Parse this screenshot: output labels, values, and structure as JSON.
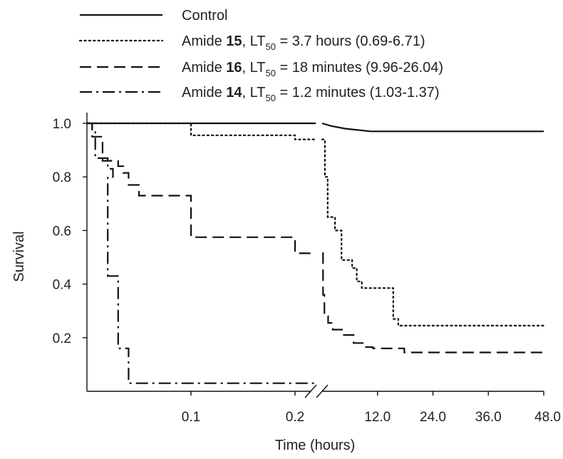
{
  "chart_data": {
    "type": "line",
    "xlabel": "Time (hours)",
    "ylabel": "Survival",
    "ylim": [
      0,
      1.0
    ],
    "yticks": [
      "1.0",
      "0.8",
      "0.6",
      "0.4",
      "0.2"
    ],
    "yticks_values": [
      1.0,
      0.8,
      0.6,
      0.4,
      0.2
    ],
    "xticks_left": [
      "0.1",
      "0.2"
    ],
    "xticks_left_values": [
      0.1,
      0.2
    ],
    "xticks_right": [
      "12.0",
      "24.0",
      "36.0",
      "48.0"
    ],
    "xticks_right_values": [
      12,
      24,
      36,
      48
    ],
    "x_axis_break": {
      "left_segment_range_hours": [
        0,
        0.22
      ],
      "right_segment_range_hours": [
        0,
        48
      ]
    },
    "grid": false,
    "legend_position": "top",
    "series": [
      {
        "key": "control",
        "name": "Control",
        "legend_parts": [
          "Control",
          "",
          "",
          "",
          ""
        ],
        "dash": "solid",
        "left_steps": [
          [
            0,
            1.0
          ],
          [
            0.22,
            1.0
          ]
        ],
        "right_steps": [
          [
            0,
            1.0
          ],
          [
            2,
            0.99
          ],
          [
            5,
            0.98
          ],
          [
            10.5,
            0.97
          ],
          [
            48,
            0.97
          ]
        ]
      },
      {
        "key": "amide15",
        "name": "Amide 15, LT50 = 3.7 hours (0.69-6.71)",
        "legend_parts": [
          "Amide ",
          "15",
          ", LT",
          "50",
          " = 3.7 hours (0.69-6.71)"
        ],
        "dash": "dotted",
        "left_steps": [
          [
            0,
            1.0
          ],
          [
            0.1,
            1.0
          ],
          [
            0.1,
            0.955
          ],
          [
            0.2,
            0.955
          ],
          [
            0.2,
            0.94
          ],
          [
            0.22,
            0.94
          ]
        ],
        "right_steps": [
          [
            0,
            0.94
          ],
          [
            0.6,
            0.94
          ],
          [
            0.6,
            0.8
          ],
          [
            1.2,
            0.8
          ],
          [
            1.2,
            0.65
          ],
          [
            2.8,
            0.65
          ],
          [
            2.8,
            0.6
          ],
          [
            4.2,
            0.6
          ],
          [
            4.2,
            0.49
          ],
          [
            6.5,
            0.49
          ],
          [
            6.5,
            0.46
          ],
          [
            7.5,
            0.46
          ],
          [
            7.5,
            0.41
          ],
          [
            8.6,
            0.41
          ],
          [
            8.6,
            0.385
          ],
          [
            15.4,
            0.385
          ],
          [
            15.4,
            0.27
          ],
          [
            16.5,
            0.27
          ],
          [
            16.5,
            0.245
          ],
          [
            48,
            0.245
          ]
        ]
      },
      {
        "key": "amide16",
        "name": "Amide 16, LT50 = 18 minutes (9.96-26.04)",
        "legend_parts": [
          "Amide ",
          "16",
          ", LT",
          "50",
          " = 18 minutes (9.96-26.04)"
        ],
        "dash": "dashed",
        "left_steps": [
          [
            0,
            1.0
          ],
          [
            0.005,
            1.0
          ],
          [
            0.005,
            0.95
          ],
          [
            0.015,
            0.95
          ],
          [
            0.015,
            0.86
          ],
          [
            0.03,
            0.86
          ],
          [
            0.03,
            0.84
          ],
          [
            0.035,
            0.84
          ],
          [
            0.035,
            0.815
          ],
          [
            0.04,
            0.815
          ],
          [
            0.04,
            0.77
          ],
          [
            0.05,
            0.77
          ],
          [
            0.05,
            0.73
          ],
          [
            0.1,
            0.73
          ],
          [
            0.1,
            0.575
          ],
          [
            0.2,
            0.575
          ],
          [
            0.2,
            0.515
          ],
          [
            0.22,
            0.515
          ]
        ],
        "right_steps": [
          [
            0,
            0.515
          ],
          [
            0.2,
            0.515
          ],
          [
            0.2,
            0.36
          ],
          [
            0.5,
            0.36
          ],
          [
            0.5,
            0.28
          ],
          [
            1.3,
            0.28
          ],
          [
            1.3,
            0.255
          ],
          [
            2.3,
            0.255
          ],
          [
            2.3,
            0.23
          ],
          [
            4.5,
            0.23
          ],
          [
            4.5,
            0.21
          ],
          [
            6.8,
            0.21
          ],
          [
            6.8,
            0.18
          ],
          [
            8.8,
            0.18
          ],
          [
            8.8,
            0.165
          ],
          [
            11,
            0.165
          ],
          [
            11,
            0.16
          ],
          [
            17.8,
            0.16
          ],
          [
            17.8,
            0.145
          ],
          [
            48,
            0.145
          ]
        ]
      },
      {
        "key": "amide14",
        "name": "Amide 14, LT50 = 1.2 minutes (1.03-1.37)",
        "legend_parts": [
          "Amide ",
          "14",
          ", LT",
          "50",
          " = 1.2 minutes (1.03-1.37)"
        ],
        "dash": "dashdot",
        "left_steps": [
          [
            0,
            1.0
          ],
          [
            0.005,
            1.0
          ],
          [
            0.005,
            0.97
          ],
          [
            0.008,
            0.97
          ],
          [
            0.008,
            0.87
          ],
          [
            0.02,
            0.87
          ],
          [
            0.02,
            0.83
          ],
          [
            0.025,
            0.83
          ],
          [
            0.025,
            0.8
          ],
          [
            0.02,
            0.8
          ],
          [
            0.02,
            0.43
          ],
          [
            0.03,
            0.43
          ],
          [
            0.03,
            0.16
          ],
          [
            0.04,
            0.16
          ],
          [
            0.04,
            0.03
          ],
          [
            0.22,
            0.03
          ]
        ],
        "right_steps": []
      }
    ]
  }
}
